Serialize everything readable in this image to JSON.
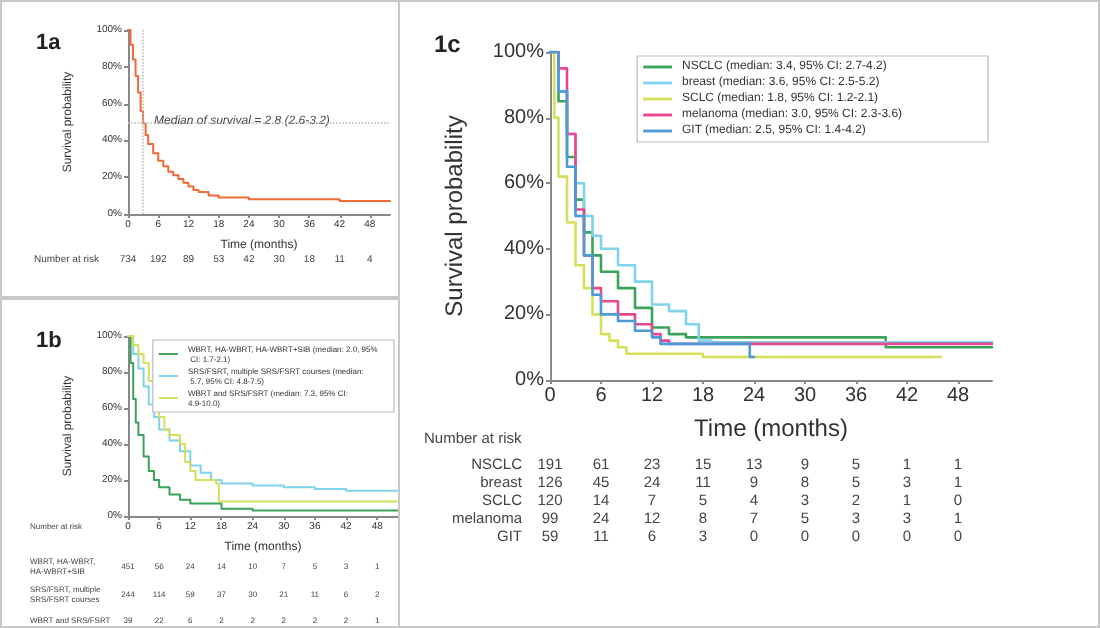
{
  "chart_data": [
    {
      "type": "step",
      "title": "1a",
      "xlabel": "Time (months)",
      "ylabel": "Survival probability",
      "xlim": [
        0,
        52
      ],
      "xticks": [
        0,
        6,
        12,
        18,
        24,
        30,
        36,
        42,
        48
      ],
      "ylim": [
        0,
        100
      ],
      "yticks": [
        {
          "value": 0,
          "label": "0%"
        },
        {
          "value": 20,
          "label": "20%"
        },
        {
          "value": 40,
          "label": "40%"
        },
        {
          "value": 60,
          "label": "60%"
        },
        {
          "value": 80,
          "label": "80%"
        },
        {
          "value": 100,
          "label": "100%"
        }
      ],
      "series": [
        {
          "color": "#f26a35",
          "x": [
            0,
            0.5,
            1,
            1.5,
            2,
            2.5,
            3,
            3.5,
            4,
            5,
            6,
            7,
            8,
            9,
            10,
            11,
            12,
            13,
            14,
            16,
            18,
            20,
            24,
            30,
            36,
            42,
            48,
            52
          ],
          "values": [
            100,
            92,
            84,
            75,
            66,
            56,
            49,
            43,
            38,
            33,
            29,
            26,
            23,
            21,
            19,
            17,
            15,
            13,
            12,
            10,
            9,
            9,
            8,
            8,
            8,
            7,
            7,
            7
          ]
        }
      ],
      "ref_lines": [
        {
          "axis": "y",
          "value": 50,
          "color": "#bbbbbb",
          "line_style": "dotted"
        },
        {
          "axis": "x",
          "value": 2.8,
          "color": "#bbbbbb",
          "line_style": "dotted"
        }
      ],
      "annotations": [
        {
          "text": "Median of survival = 2.8 (2.6-3.2)",
          "x": 2.8,
          "y": 50
        },
        "Number at risk\t734\t192\t89\t53\t42\t30\t18\t11\t4"
      ],
      "legend": false
    },
    {
      "type": "step",
      "title": "1b",
      "xlabel": "Time (months)",
      "ylabel": "Survival probability",
      "xlim": [
        0,
        52
      ],
      "xticks": [
        0,
        6,
        12,
        18,
        24,
        30,
        36,
        42,
        48
      ],
      "ylim": [
        0,
        100
      ],
      "yticks": [
        {
          "value": 0,
          "label": "0%"
        },
        {
          "value": 20,
          "label": "20%"
        },
        {
          "value": 40,
          "label": "40%"
        },
        {
          "value": 60,
          "label": "60%"
        },
        {
          "value": 80,
          "label": "80%"
        },
        {
          "value": 100,
          "label": "100%"
        }
      ],
      "series": [
        {
          "name": "WBRT, HA-WBRT, HA-WBRT+SIB (median: 2.0, 95% CI: 1.7-2.1)",
          "color": "#3aa35a",
          "x": [
            0,
            0.5,
            1,
            1.5,
            2,
            3,
            4,
            5,
            6,
            8,
            10,
            12,
            18,
            24,
            30,
            52
          ],
          "values": [
            100,
            85,
            65,
            52,
            45,
            33,
            25,
            20,
            16,
            12,
            9,
            7,
            4,
            3,
            3,
            3
          ]
        },
        {
          "name": "SRS/FSRT, multiple SRS/FSRT courses (median: 5.7, 95% CI: 4.8-7.5)",
          "color": "#7fd3ea",
          "x": [
            0,
            1,
            2,
            3,
            4,
            5,
            6,
            8,
            10,
            12,
            14,
            16,
            18,
            24,
            30,
            36,
            42,
            52
          ],
          "values": [
            100,
            90,
            82,
            72,
            62,
            55,
            48,
            42,
            36,
            28,
            24,
            20,
            18,
            17,
            16,
            15,
            14,
            14
          ]
        },
        {
          "name": "WBRT and SRS/FSRT (median: 7.3, 95% CI: 4.9-10.0)",
          "color": "#d4e05a",
          "x": [
            0,
            1,
            2,
            3,
            4,
            5,
            6,
            7,
            8,
            10,
            11,
            12,
            13,
            17,
            17.5,
            52
          ],
          "values": [
            100,
            95,
            90,
            85,
            75,
            64,
            55,
            48,
            45,
            40,
            30,
            25,
            20,
            18,
            8,
            8
          ]
        }
      ],
      "annotations": [
        "Number at risk",
        "WBRT, HA-WBRT, HA-WBRT+SIB\t451\t56\t24\t14\t10\t7\t5\t3\t1",
        "SRS/FSRT, multiple SRS/FSRT courses\t244\t114\t59\t37\t30\t21\t11\t6\t2",
        "WBRT and SRS/FSRT\t39\t22\t6\t2\t2\t2\t2\t2\t1"
      ],
      "legend": "top right"
    },
    {
      "type": "step",
      "title": "1c",
      "xlabel": "Time (months)",
      "ylabel": "Survival probability",
      "xlim": [
        0,
        52
      ],
      "xticks": [
        0,
        6,
        12,
        18,
        24,
        30,
        36,
        42,
        48
      ],
      "ylim": [
        0,
        100
      ],
      "yticks": [
        {
          "value": 0,
          "label": "0%"
        },
        {
          "value": 20,
          "label": "20%"
        },
        {
          "value": 40,
          "label": "40%"
        },
        {
          "value": 60,
          "label": "60%"
        },
        {
          "value": 80,
          "label": "80%"
        },
        {
          "value": 100,
          "label": "100%"
        }
      ],
      "series": [
        {
          "name": "NSCLC (median: 3.4, 95% CI: 2.7-4.2)",
          "color": "#3aa35a",
          "x": [
            0,
            1,
            2,
            3,
            4,
            5,
            6,
            8,
            10,
            12,
            14,
            16,
            18,
            20,
            39,
            39.5,
            52
          ],
          "values": [
            100,
            85,
            68,
            55,
            45,
            38,
            33,
            28,
            22,
            16,
            14,
            13,
            13,
            13,
            13,
            10,
            10
          ]
        },
        {
          "name": "breast (median: 3.6, 95% CI: 2.5-5.2)",
          "color": "#7fd3ea",
          "x": [
            0,
            1,
            2,
            3,
            4,
            5,
            6,
            8,
            10,
            12,
            14,
            16,
            17.5,
            19,
            52
          ],
          "values": [
            100,
            88,
            75,
            60,
            50,
            44,
            40,
            35,
            30,
            23,
            21,
            17,
            12,
            11.5,
            11.5
          ]
        },
        {
          "name": "SCLC (median: 1.8, 95% CI: 1.2-2.1)",
          "color": "#d4e05a",
          "x": [
            0,
            0.5,
            1,
            2,
            3,
            4,
            5,
            6,
            7,
            8,
            9,
            12,
            18,
            23,
            46
          ],
          "values": [
            100,
            80,
            62,
            48,
            35,
            28,
            20,
            14,
            12,
            10,
            8,
            8,
            7,
            7,
            7
          ]
        },
        {
          "name": "melanoma (median: 3.0, 95% CI: 2.3-3.6)",
          "color": "#e8468f",
          "x": [
            0,
            1,
            2,
            3,
            4,
            5,
            6,
            8,
            10,
            12,
            13,
            14,
            18,
            24,
            52
          ],
          "values": [
            100,
            95,
            75,
            52,
            38,
            28,
            24,
            20,
            17,
            14,
            12,
            11,
            11,
            11,
            11
          ]
        },
        {
          "name": "GIT (median: 2.5, 95% CI: 1.4-4.2)",
          "color": "#4d9ad8",
          "x": [
            0,
            1,
            2,
            3,
            4,
            5,
            6,
            8,
            10,
            12,
            13,
            18,
            23,
            23.5,
            24
          ],
          "values": [
            100,
            88,
            65,
            50,
            38,
            26,
            20,
            18,
            15,
            13,
            11,
            11,
            11,
            7,
            7
          ]
        }
      ],
      "annotations": [
        "Number at risk",
        "NSCLC\t191\t61\t23\t15\t13\t9\t5\t1\t1",
        "breast\t126\t45\t24\t11\t9\t8\t5\t3\t1",
        "SCLC\t120\t14\t7\t5\t4\t3\t2\t1\t0",
        "melanoma\t99\t24\t12\t8\t7\t5\t3\t3\t1",
        "GIT\t59\t11\t6\t3\t0\t0\t0\t0\t0"
      ],
      "legend": "top right"
    }
  ]
}
